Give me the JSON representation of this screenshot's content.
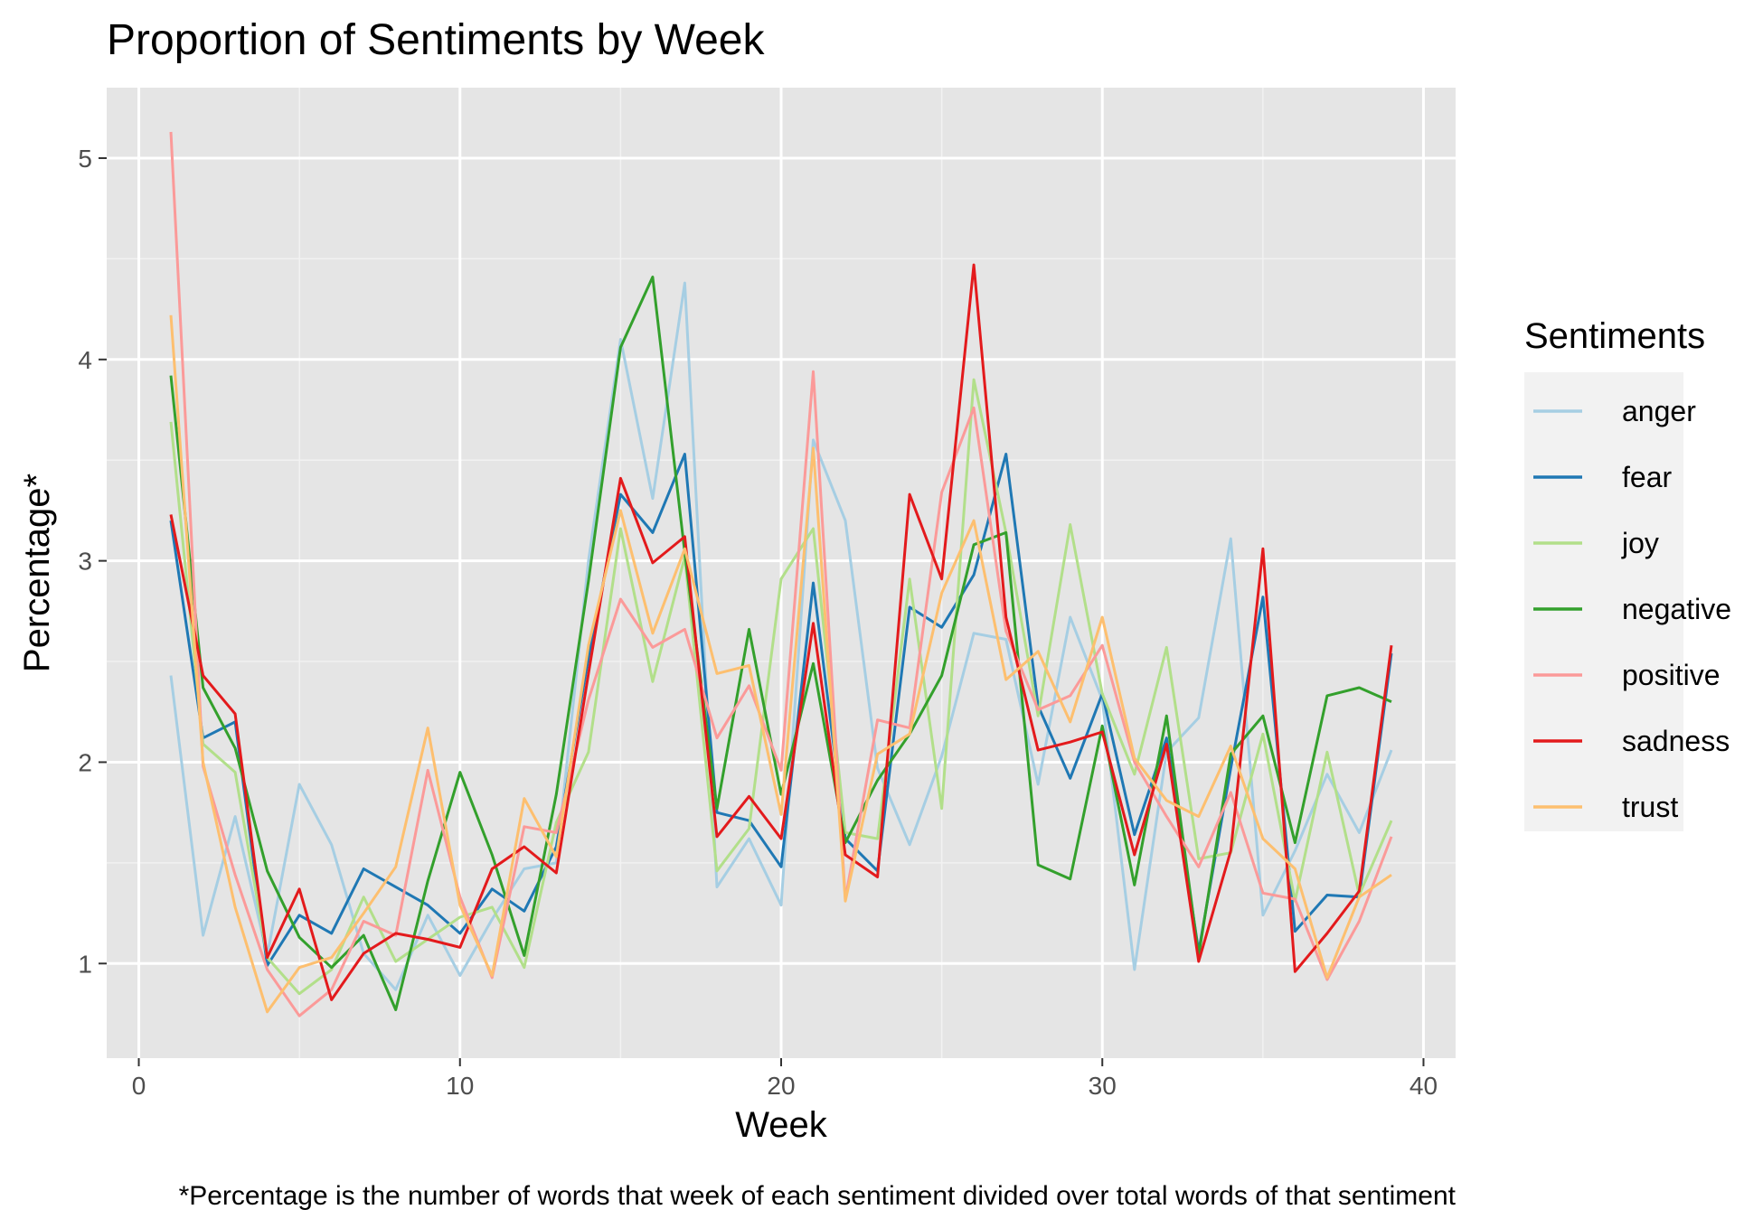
{
  "chart_data": {
    "type": "line",
    "title": "Proportion of Sentiments by Week",
    "xlabel": "Week",
    "ylabel": "Percentage*",
    "caption": "*Percentage is the number of words that week of each sentiment divided over total words of that sentiment",
    "xlim": [
      -1,
      41
    ],
    "ylim": [
      0.53,
      5.35
    ],
    "x_ticks": [
      0,
      10,
      20,
      30,
      40
    ],
    "y_ticks": [
      1,
      2,
      3,
      4,
      5
    ],
    "x_minor": [
      5,
      15,
      25,
      35
    ],
    "y_minor": [
      1.5,
      2.5,
      3.5,
      4.5
    ],
    "grid": true,
    "legend_title": "Sentiments",
    "legend_position": "right",
    "panel_color": "#e5e5e5",
    "x": [
      1,
      2,
      3,
      4,
      5,
      6,
      7,
      8,
      9,
      10,
      11,
      12,
      13,
      14,
      15,
      16,
      17,
      18,
      19,
      20,
      21,
      22,
      23,
      24,
      25,
      26,
      27,
      28,
      29,
      30,
      31,
      32,
      33,
      34,
      35,
      36,
      37,
      38,
      39
    ],
    "series": [
      {
        "name": "anger",
        "color": "#a6cee3",
        "values": [
          2.43,
          1.14,
          1.73,
          1.04,
          1.89,
          1.59,
          1.05,
          0.87,
          1.24,
          0.94,
          1.22,
          1.47,
          1.5,
          3.0,
          4.1,
          3.31,
          4.38,
          1.38,
          1.62,
          1.29,
          3.6,
          3.2,
          1.97,
          1.59,
          2.03,
          2.64,
          2.61,
          1.89,
          2.72,
          2.31,
          0.97,
          2.05,
          2.22,
          3.11,
          1.24,
          1.56,
          1.94,
          1.65,
          2.06
        ]
      },
      {
        "name": "fear",
        "color": "#1f78b4",
        "values": [
          3.2,
          2.12,
          2.2,
          0.99,
          1.24,
          1.15,
          1.47,
          1.38,
          1.29,
          1.15,
          1.37,
          1.26,
          1.58,
          2.52,
          3.33,
          3.14,
          3.53,
          1.75,
          1.71,
          1.48,
          2.89,
          1.62,
          1.46,
          2.77,
          2.67,
          2.93,
          3.53,
          2.28,
          1.92,
          2.34,
          1.64,
          2.12,
          1.06,
          1.97,
          2.82,
          1.16,
          1.34,
          1.33,
          2.54
        ]
      },
      {
        "name": "joy",
        "color": "#b2df8a",
        "values": [
          3.69,
          2.09,
          1.95,
          1.03,
          0.85,
          0.97,
          1.33,
          1.01,
          1.12,
          1.23,
          1.28,
          0.98,
          1.7,
          2.05,
          3.16,
          2.4,
          3.02,
          1.46,
          1.67,
          2.91,
          3.16,
          1.65,
          1.62,
          2.91,
          1.77,
          3.9,
          3.14,
          2.23,
          3.18,
          2.34,
          1.94,
          2.57,
          1.52,
          1.55,
          2.14,
          1.31,
          2.05,
          1.34,
          1.71
        ]
      },
      {
        "name": "negative",
        "color": "#33a02c",
        "values": [
          3.92,
          2.37,
          2.07,
          1.46,
          1.13,
          0.98,
          1.14,
          0.77,
          1.41,
          1.95,
          1.54,
          1.04,
          1.84,
          2.9,
          4.06,
          4.41,
          3.04,
          1.77,
          2.66,
          1.84,
          2.49,
          1.6,
          1.91,
          2.14,
          2.43,
          3.08,
          3.14,
          1.49,
          1.42,
          2.18,
          1.39,
          2.23,
          1.04,
          2.04,
          2.23,
          1.6,
          2.33,
          2.37,
          2.3
        ]
      },
      {
        "name": "positive",
        "color": "#fb9a99",
        "values": [
          5.13,
          1.98,
          1.44,
          0.97,
          0.74,
          0.87,
          1.21,
          1.14,
          1.96,
          1.33,
          0.93,
          1.68,
          1.65,
          2.31,
          2.81,
          2.57,
          2.66,
          2.12,
          2.38,
          1.96,
          3.94,
          1.32,
          2.21,
          2.17,
          3.34,
          3.76,
          2.65,
          2.26,
          2.33,
          2.58,
          2.0,
          1.73,
          1.48,
          1.85,
          1.35,
          1.32,
          0.92,
          1.21,
          1.63
        ]
      },
      {
        "name": "sadness",
        "color": "#e31a1c",
        "values": [
          3.23,
          2.43,
          2.24,
          1.03,
          1.37,
          0.82,
          1.05,
          1.15,
          1.12,
          1.08,
          1.47,
          1.58,
          1.45,
          2.44,
          3.41,
          2.99,
          3.12,
          1.63,
          1.83,
          1.62,
          2.69,
          1.54,
          1.43,
          3.33,
          2.91,
          4.47,
          2.72,
          2.06,
          2.1,
          2.15,
          1.54,
          2.09,
          1.01,
          1.56,
          3.06,
          0.96,
          1.15,
          1.36,
          2.58
        ]
      },
      {
        "name": "trust",
        "color": "#fdbf6f",
        "values": [
          4.22,
          2.0,
          1.28,
          0.76,
          0.98,
          1.03,
          1.25,
          1.48,
          2.17,
          1.29,
          0.94,
          1.82,
          1.53,
          2.58,
          3.25,
          2.64,
          3.06,
          2.44,
          2.48,
          1.74,
          3.56,
          1.31,
          2.04,
          2.14,
          2.84,
          3.2,
          2.41,
          2.55,
          2.2,
          2.72,
          2.02,
          1.81,
          1.73,
          2.08,
          1.62,
          1.47,
          0.93,
          1.33,
          1.44
        ]
      }
    ]
  }
}
